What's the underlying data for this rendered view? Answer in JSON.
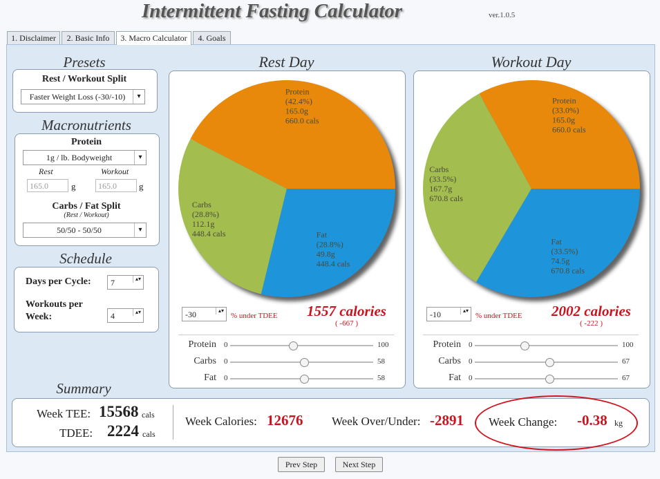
{
  "header": {
    "title": "Intermittent Fasting Calculator",
    "version": "ver.1.0.5"
  },
  "tabs": [
    "1. Disclaimer",
    "2. Basic Info",
    "3. Macro Calculator",
    "4. Goals"
  ],
  "presets": {
    "heading": "Presets",
    "split_label": "Rest / Workout Split",
    "split_value": "Faster Weight Loss (-30/-10)"
  },
  "macronutrients": {
    "heading": "Macronutrients",
    "protein_label": "Protein",
    "protein_value": "1g / lb. Bodyweight",
    "rest_label": "Rest",
    "workout_label": "Workout",
    "rest_input": "165.0",
    "rest_unit": "g",
    "workout_input": "165.0",
    "workout_unit": "g",
    "split_label": "Carbs / Fat Split",
    "split_sublabel": "(Rest / Workout)",
    "split_value": "50/50 - 50/50"
  },
  "schedule": {
    "heading": "Schedule",
    "days_label": "Days per Cycle:",
    "days_value": "7",
    "workouts_label": "Workouts per Week:",
    "workouts_value": "4"
  },
  "rest_day": {
    "heading": "Rest Day",
    "slices": [
      {
        "name": "Protein",
        "value": 42.4,
        "value_label": "(42.4%)",
        "grams": "165.0g",
        "cals": "660.0 cals",
        "color": "#e8890b"
      },
      {
        "name": "Carbs",
        "value": 28.8,
        "value_label": "(28.8%)",
        "grams": "112.1g",
        "cals": "448.4 cals",
        "color": "#a3bd4e"
      },
      {
        "name": "Fat",
        "value": 28.8,
        "value_label": "(28.8%)",
        "grams": "49.8g",
        "cals": "448.4 cals",
        "color": "#1e95db"
      }
    ],
    "adjust_value": "-30",
    "adjust_label": "% under TDEE",
    "calories": "1557 calories",
    "calories_diff": "( -667 )",
    "sliders": [
      {
        "name": "Protein",
        "min": 0,
        "max": 100,
        "value": 44
      },
      {
        "name": "Carbs",
        "min": 0,
        "max": 58,
        "value": 30
      },
      {
        "name": "Fat",
        "min": 0,
        "max": 58,
        "value": 30
      }
    ]
  },
  "workout_day": {
    "heading": "Workout Day",
    "slices": [
      {
        "name": "Protein",
        "value": 33.0,
        "value_label": "(33.0%)",
        "grams": "165.0g",
        "cals": "660.0 cals",
        "color": "#e8890b"
      },
      {
        "name": "Carbs",
        "value": 33.5,
        "value_label": "(33.5%)",
        "grams": "167.7g",
        "cals": "670.8 cals",
        "color": "#a3bd4e"
      },
      {
        "name": "Fat",
        "value": 33.5,
        "value_label": "(33.5%)",
        "grams": "74.5g",
        "cals": "670.8 cals",
        "color": "#1e95db"
      }
    ],
    "adjust_value": "-10",
    "adjust_label": "% under TDEE",
    "calories": "2002 calories",
    "calories_diff": "( -222 )",
    "sliders": [
      {
        "name": "Protein",
        "min": 0,
        "max": 100,
        "value": 35
      },
      {
        "name": "Carbs",
        "min": 0,
        "max": 67,
        "value": 35
      },
      {
        "name": "Fat",
        "min": 0,
        "max": 67,
        "value": 35
      }
    ]
  },
  "summary": {
    "heading": "Summary",
    "week_tee_label": "Week TEE:",
    "week_tee_value": "15568",
    "week_tee_unit": "cals",
    "tdee_label": "TDEE:",
    "tdee_value": "2224",
    "tdee_unit": "cals",
    "week_calories_label": "Week Calories:",
    "week_calories_value": "12676",
    "over_under_label": "Week Over/Under:",
    "over_under_value": "-2891",
    "week_change_label": "Week Change:",
    "week_change_value": "-0.38",
    "week_change_unit": "kg"
  },
  "buttons": [
    "Prev Step",
    "Next Step"
  ]
}
